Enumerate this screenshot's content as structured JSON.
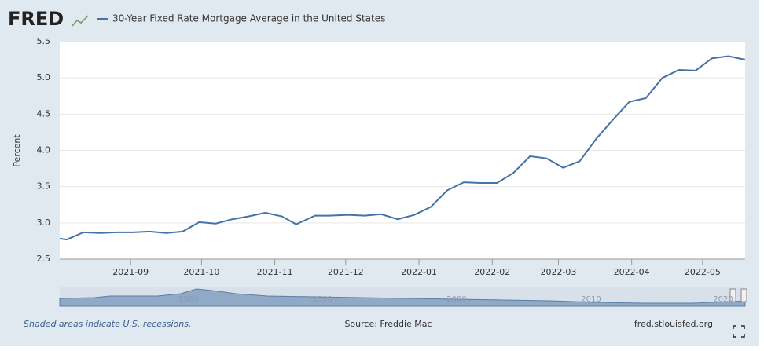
{
  "logo": "FRED",
  "chart_data": {
    "type": "line",
    "y_label": "Percent",
    "x": [
      "2021-07-29",
      "2021-08-05",
      "2021-08-12",
      "2021-08-19",
      "2021-08-26",
      "2021-09-02",
      "2021-09-09",
      "2021-09-16",
      "2021-09-23",
      "2021-09-30",
      "2021-10-07",
      "2021-10-14",
      "2021-10-21",
      "2021-10-28",
      "2021-11-04",
      "2021-11-10",
      "2021-11-18",
      "2021-11-24",
      "2021-12-02",
      "2021-12-09",
      "2021-12-16",
      "2021-12-23",
      "2021-12-30",
      "2022-01-06",
      "2022-01-13",
      "2022-01-20",
      "2022-01-27",
      "2022-02-03",
      "2022-02-10",
      "2022-02-17",
      "2022-02-24",
      "2022-03-03",
      "2022-03-10",
      "2022-03-17",
      "2022-03-24",
      "2022-03-31",
      "2022-04-07",
      "2022-04-14",
      "2022-04-21",
      "2022-04-28",
      "2022-05-05",
      "2022-05-12",
      "2022-05-19"
    ],
    "series": [
      {
        "name": "30-Year Fixed Rate Mortgage Average in the United States",
        "color": "#4572a7",
        "values": [
          2.8,
          2.77,
          2.87,
          2.86,
          2.87,
          2.87,
          2.88,
          2.86,
          2.88,
          3.01,
          2.99,
          3.05,
          3.09,
          3.14,
          3.09,
          2.98,
          3.1,
          3.1,
          3.11,
          3.1,
          3.12,
          3.05,
          3.11,
          3.22,
          3.45,
          3.56,
          3.55,
          3.55,
          3.69,
          3.92,
          3.89,
          3.76,
          3.85,
          4.16,
          4.42,
          4.67,
          4.72,
          5.0,
          5.11,
          5.1,
          5.27,
          5.3,
          5.25
        ]
      }
    ],
    "xlim": [
      "2021-08-02",
      "2022-05-19"
    ],
    "xticks": [
      {
        "value": "2021-09-01",
        "label": "2021-09"
      },
      {
        "value": "2021-10-01",
        "label": "2021-10"
      },
      {
        "value": "2021-11-01",
        "label": "2021-11"
      },
      {
        "value": "2021-12-01",
        "label": "2021-12"
      },
      {
        "value": "2022-01-01",
        "label": "2022-01"
      },
      {
        "value": "2022-02-01",
        "label": "2022-02"
      },
      {
        "value": "2022-03-01",
        "label": "2022-03"
      },
      {
        "value": "2022-04-01",
        "label": "2022-04"
      },
      {
        "value": "2022-05-01",
        "label": "2022-05"
      }
    ],
    "ylim": [
      2.5,
      5.5
    ],
    "yticks": [
      2.5,
      {
        "value": 3,
        "label": "3.0"
      },
      3.5,
      {
        "value": 4,
        "label": "4.0"
      },
      4.5,
      {
        "value": 5,
        "label": "5.0"
      },
      5.5
    ],
    "grid": true
  },
  "navigator": {
    "labels": [
      "1980",
      "1990",
      "2000",
      "2010",
      "2020"
    ]
  },
  "footer": {
    "note": "Shaded areas indicate U.S. recessions.",
    "source": "Source: Freddie Mac",
    "site": "fred.stlouisfed.org"
  }
}
